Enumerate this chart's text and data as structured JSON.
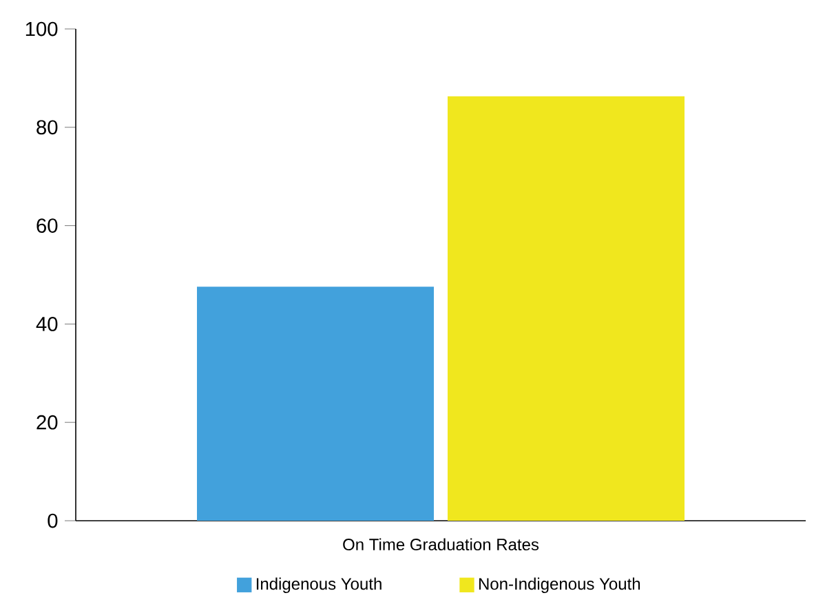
{
  "chart_data": {
    "type": "bar",
    "categories": [
      "On Time Graduation Rates"
    ],
    "series": [
      {
        "name": "Indigenous Youth",
        "color": "#42a1dc",
        "values": [
          47.6
        ]
      },
      {
        "name": "Non-Indigenous Youth",
        "color": "#f0e71e",
        "values": [
          86.3
        ]
      }
    ],
    "ylim": [
      0,
      100
    ],
    "yticks": [
      0,
      20,
      40,
      60,
      80,
      100
    ],
    "legend": "bottom",
    "grid": false
  }
}
